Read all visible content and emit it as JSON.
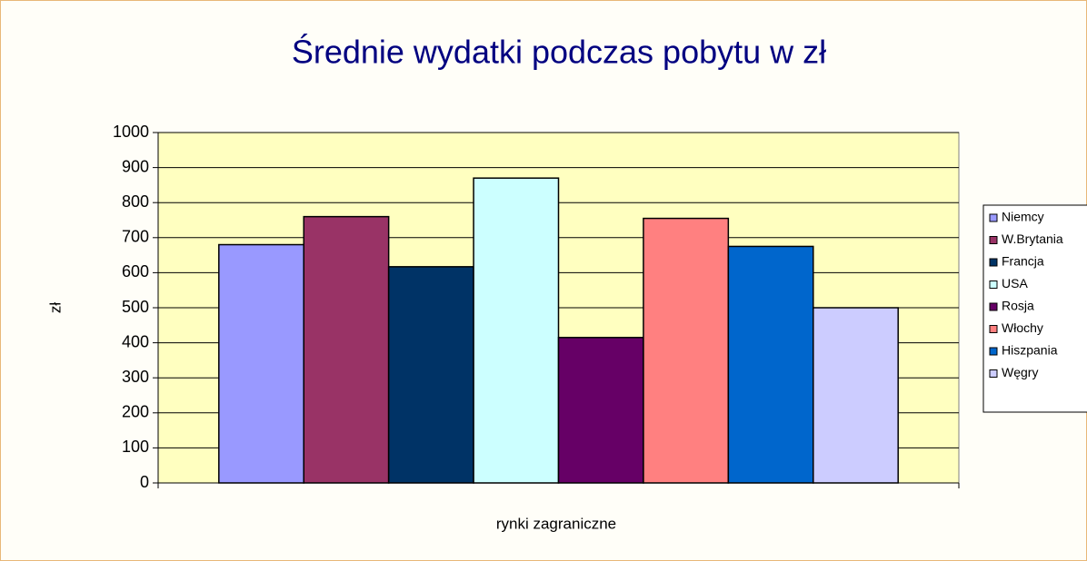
{
  "chart_data": {
    "type": "bar",
    "title": "Średnie wydatki podczas pobytu w zł",
    "x_label": "rynki zagraniczne",
    "y_label": "zł",
    "categories": [
      null
    ],
    "series": [
      {
        "name": "Niemcy",
        "color": "#9999ff",
        "values": [
          680
        ]
      },
      {
        "name": "W.Brytania",
        "color": "#993366",
        "values": [
          760
        ]
      },
      {
        "name": "Francja",
        "color": "#003366",
        "values": [
          617
        ]
      },
      {
        "name": "USA",
        "color": "#ccffff",
        "values": [
          870
        ]
      },
      {
        "name": "Rosja",
        "color": "#660066",
        "values": [
          415
        ]
      },
      {
        "name": "Włochy",
        "color": "#ff8080",
        "values": [
          755
        ]
      },
      {
        "name": "Hiszpania",
        "color": "#0066cc",
        "values": [
          675
        ]
      },
      {
        "name": "Węgry",
        "color": "#ccccff",
        "values": [
          500
        ]
      }
    ],
    "ylim": [
      0,
      1000
    ],
    "yticks": [
      0,
      100,
      200,
      300,
      400,
      500,
      600,
      700,
      800,
      900,
      1000
    ],
    "grid": true,
    "legend": "right",
    "plot_background": "#ffffc0"
  }
}
